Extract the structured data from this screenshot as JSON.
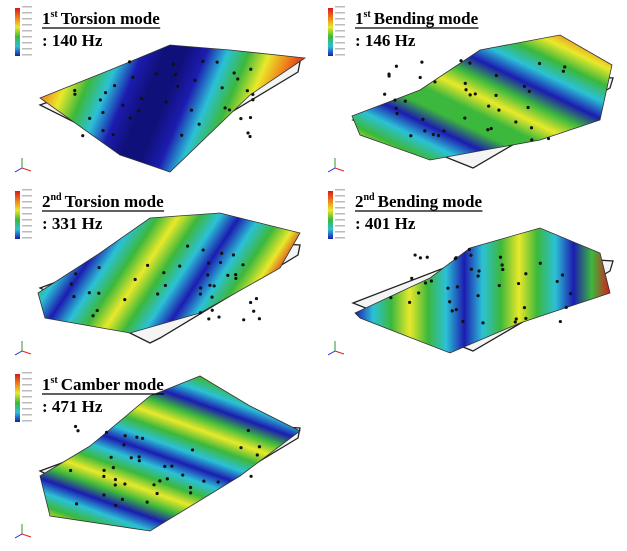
{
  "panels": [
    {
      "ordinal": "1",
      "suffix": "st",
      "name": "Torsion mode",
      "frequency": ": 140 Hz"
    },
    {
      "ordinal": "1",
      "suffix": "st",
      "name": "Bending mode",
      "frequency": ": 146 Hz"
    },
    {
      "ordinal": "2",
      "suffix": "nd",
      "name": "Torsion mode",
      "frequency": ": 331 Hz"
    },
    {
      "ordinal": "2",
      "suffix": "nd",
      "name": "Bending mode",
      "frequency": ": 401 Hz"
    },
    {
      "ordinal": "1",
      "suffix": "st",
      "name": "Camber mode",
      "frequency": ": 471 Hz"
    }
  ]
}
